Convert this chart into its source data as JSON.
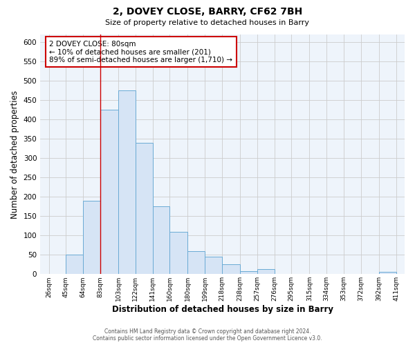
{
  "title": "2, DOVEY CLOSE, BARRY, CF62 7BH",
  "subtitle": "Size of property relative to detached houses in Barry",
  "xlabel": "Distribution of detached houses by size in Barry",
  "ylabel": "Number of detached properties",
  "footer_line1": "Contains HM Land Registry data © Crown copyright and database right 2024.",
  "footer_line2": "Contains public sector information licensed under the Open Government Licence v3.0.",
  "bar_edges": [
    26,
    45,
    64,
    83,
    103,
    122,
    141,
    160,
    180,
    199,
    218,
    238,
    257,
    276,
    295,
    315,
    334,
    353,
    372,
    392,
    411
  ],
  "bar_heights": [
    0,
    50,
    190,
    425,
    475,
    340,
    175,
    110,
    60,
    45,
    25,
    8,
    13,
    0,
    0,
    0,
    0,
    0,
    0,
    5
  ],
  "bar_color": "#d6e4f5",
  "bar_edge_color": "#6aaad4",
  "property_line_x": 83,
  "property_line_color": "#cc0000",
  "annotation_title": "2 DOVEY CLOSE: 80sqm",
  "annotation_line1": "← 10% of detached houses are smaller (201)",
  "annotation_line2": "89% of semi-detached houses are larger (1,710) →",
  "annotation_box_edge_color": "#cc0000",
  "ylim": [
    0,
    620
  ],
  "yticks": [
    0,
    50,
    100,
    150,
    200,
    250,
    300,
    350,
    400,
    450,
    500,
    550,
    600
  ],
  "xtick_labels": [
    "26sqm",
    "45sqm",
    "64sqm",
    "83sqm",
    "103sqm",
    "122sqm",
    "141sqm",
    "160sqm",
    "180sqm",
    "199sqm",
    "218sqm",
    "238sqm",
    "257sqm",
    "276sqm",
    "295sqm",
    "315sqm",
    "334sqm",
    "353sqm",
    "372sqm",
    "392sqm",
    "411sqm"
  ],
  "grid_color": "#cccccc",
  "background_color": "#ffffff",
  "plot_bg_color": "#eef4fb"
}
